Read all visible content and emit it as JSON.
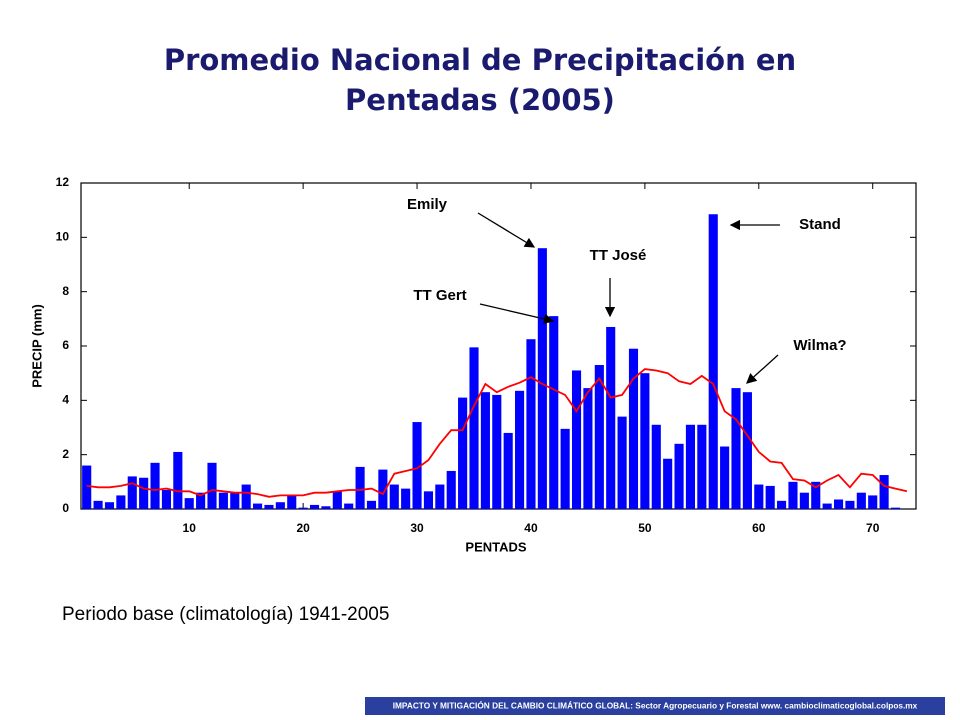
{
  "chart_data": {
    "type": "bar",
    "title": [
      "Promedio Nacional de Precipitación en",
      "Pentadas (2005)"
    ],
    "x_label": "PENTADS",
    "y_label": "PRECIP (mm)",
    "x": [
      1,
      2,
      3,
      4,
      5,
      6,
      7,
      8,
      9,
      10,
      11,
      12,
      13,
      14,
      15,
      16,
      17,
      18,
      19,
      20,
      21,
      22,
      23,
      24,
      25,
      26,
      27,
      28,
      29,
      30,
      31,
      32,
      33,
      34,
      35,
      36,
      37,
      38,
      39,
      40,
      41,
      42,
      43,
      44,
      45,
      46,
      47,
      48,
      49,
      50,
      51,
      52,
      53,
      54,
      55,
      56,
      57,
      58,
      59,
      60,
      61,
      62,
      63,
      64,
      65,
      66,
      67,
      68,
      69,
      70,
      71,
      72,
      73
    ],
    "series": [
      {
        "type": "bar",
        "color": "#0000ff",
        "values": [
          1.6,
          0.3,
          0.25,
          0.5,
          1.2,
          1.15,
          1.7,
          0.7,
          2.1,
          0.4,
          0.6,
          1.7,
          0.6,
          0.6,
          0.9,
          0.2,
          0.15,
          0.25,
          0.5,
          0.05,
          0.15,
          0.1,
          0.65,
          0.2,
          1.55,
          0.3,
          1.45,
          0.9,
          0.75,
          3.2,
          0.65,
          0.9,
          1.4,
          4.1,
          5.95,
          4.3,
          4.2,
          2.8,
          4.35,
          6.25,
          9.6,
          7.1,
          2.95,
          5.1,
          4.45,
          5.3,
          6.7,
          3.4,
          5.9,
          5.0,
          3.1,
          1.85,
          2.4,
          3.1,
          3.1,
          10.85,
          2.3,
          4.45,
          4.3,
          0.9,
          0.85,
          0.3,
          1.0,
          0.6,
          1.0,
          0.2,
          0.35,
          0.3,
          0.6,
          0.5,
          1.25,
          0.05,
          0
        ]
      },
      {
        "type": "line",
        "color": "#ff0000",
        "values": [
          0.85,
          0.8,
          0.8,
          0.85,
          0.95,
          0.75,
          0.7,
          0.75,
          0.65,
          0.65,
          0.5,
          0.7,
          0.65,
          0.6,
          0.6,
          0.55,
          0.45,
          0.5,
          0.5,
          0.5,
          0.6,
          0.6,
          0.65,
          0.7,
          0.7,
          0.75,
          0.55,
          1.3,
          1.4,
          1.5,
          1.8,
          2.4,
          2.9,
          2.9,
          3.8,
          4.6,
          4.3,
          4.5,
          4.65,
          4.85,
          4.6,
          4.4,
          4.2,
          3.6,
          4.3,
          4.8,
          4.1,
          4.2,
          4.8,
          5.15,
          5.1,
          5.0,
          4.7,
          4.6,
          4.9,
          4.6,
          3.6,
          3.3,
          2.7,
          2.1,
          1.75,
          1.7,
          1.1,
          1.05,
          0.8,
          1.05,
          1.25,
          0.8,
          1.3,
          1.25,
          0.85,
          0.75,
          0.65
        ]
      }
    ],
    "xlim": [
      0.5,
      73.8
    ],
    "xticks": [
      10,
      20,
      30,
      40,
      50,
      60,
      70
    ],
    "ylim": [
      0,
      12
    ],
    "yticks": [
      0,
      2,
      4,
      6,
      8,
      10,
      12
    ],
    "annotations": [
      "Emily",
      "TT Gert",
      "TT José",
      "Stand",
      "Wilma?"
    ],
    "note": "Periodo base (climatología) 1941-2005",
    "footer": "IMPACTO Y MITIGACIÓN DEL CAMBIO CLIMÁTICO GLOBAL: Sector Agropecuario y Forestal www. cambioclimaticoglobal.colpos.mx"
  }
}
